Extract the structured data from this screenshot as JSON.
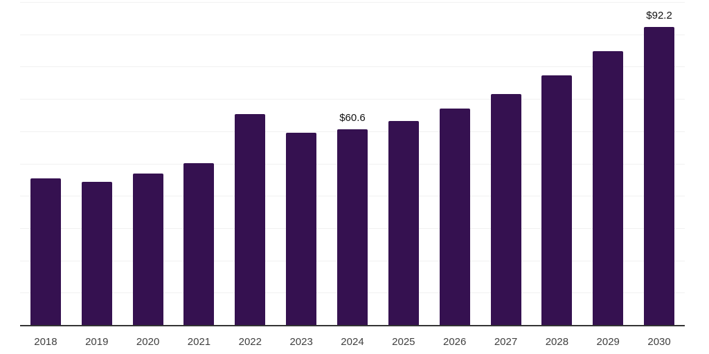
{
  "chart_data": {
    "type": "bar",
    "title": "",
    "xlabel": "",
    "ylabel": "",
    "categories": [
      "2018",
      "2019",
      "2020",
      "2021",
      "2022",
      "2023",
      "2024",
      "2025",
      "2026",
      "2027",
      "2028",
      "2029",
      "2030"
    ],
    "values": [
      45.4,
      44.3,
      46.9,
      50.1,
      65.3,
      59.5,
      60.6,
      63.2,
      67.0,
      71.5,
      77.3,
      84.8,
      92.2
    ],
    "value_labels": {
      "2024": "$60.6",
      "2030": "$92.2"
    },
    "ylim": [
      0,
      100
    ],
    "grid": "horizontal",
    "gridline_step": 10,
    "legend": "none",
    "colors": {
      "bar": "#351150",
      "gridline": "#f1f1f1",
      "axis": "#333333",
      "tick_label": "#404040",
      "value_label": "#111111",
      "background": "#ffffff"
    }
  }
}
